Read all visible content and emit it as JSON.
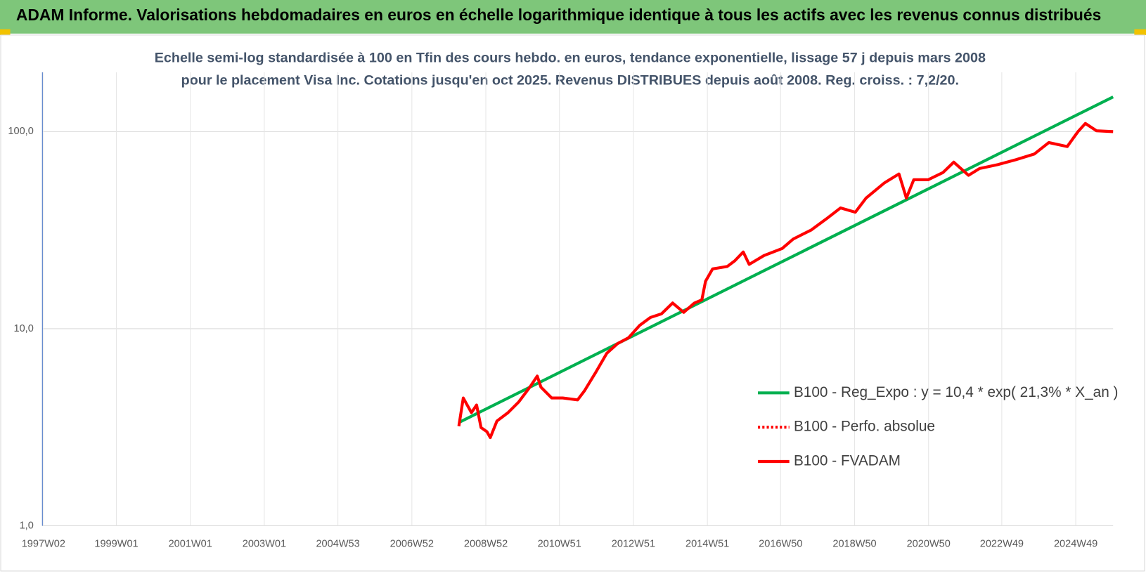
{
  "header": {
    "title": "ADAM Informe. Valorisations hebdomadaires en euros en échelle logarithmique identique à tous les actifs avec les revenus connus distribués"
  },
  "chart_data": {
    "type": "line",
    "title": "Echelle semi-log standardisée à 100 en Tfin des cours hebdo. en euros, tendance exponentielle, lissage 57 j depuis mars 2008 pour le placement Visa Inc. Cotations jusqu'en oct 2025. Revenus DISTRIBUES depuis août 2008. Reg. croiss. : 7,2/20.",
    "log_y": true,
    "grid": true,
    "legend": "right",
    "xlim": [
      1997,
      2025.95
    ],
    "xticks": [
      {
        "value": 1997.03,
        "label": "1997W02"
      },
      {
        "value": 1999.0,
        "label": "1999W01"
      },
      {
        "value": 2001.0,
        "label": "2001W01"
      },
      {
        "value": 2003.0,
        "label": "2003W01"
      },
      {
        "value": 2004.99,
        "label": "2004W53"
      },
      {
        "value": 2006.99,
        "label": "2006W52"
      },
      {
        "value": 2008.99,
        "label": "2008W52"
      },
      {
        "value": 2010.98,
        "label": "2010W51"
      },
      {
        "value": 2012.98,
        "label": "2012W51"
      },
      {
        "value": 2014.98,
        "label": "2014W51"
      },
      {
        "value": 2016.96,
        "label": "2016W50"
      },
      {
        "value": 2018.96,
        "label": "2018W50"
      },
      {
        "value": 2020.96,
        "label": "2020W50"
      },
      {
        "value": 2022.94,
        "label": "2022W49"
      },
      {
        "value": 2024.94,
        "label": "2024W49"
      }
    ],
    "ylim": [
      1,
      200
    ],
    "yticks": [
      {
        "value": 1,
        "label": "1,0"
      },
      {
        "value": 10,
        "label": "10,0"
      },
      {
        "value": 100,
        "label": "100,0"
      }
    ],
    "series": [
      {
        "name": "B100 - Reg_Expo : y = 10,4 * exp( 21,3% *  X_an )",
        "color": "#00b050",
        "line_style": "solid",
        "x": [
          2008.26,
          2025.95
        ],
        "values": [
          3.34,
          150
        ]
      },
      {
        "name": "B100 - Perfo. absolue",
        "color": "#ff0000",
        "line_style": "dotted",
        "x": [],
        "values": []
      },
      {
        "name": "B100 - FVADAM",
        "color": "#ff0000",
        "line_style": "solid",
        "x": [
          2008.26,
          2008.38,
          2008.6,
          2008.74,
          2008.86,
          2009.02,
          2009.11,
          2009.29,
          2009.59,
          2009.88,
          2010.18,
          2010.38,
          2010.48,
          2010.77,
          2011.07,
          2011.47,
          2011.66,
          2011.96,
          2012.26,
          2012.55,
          2012.85,
          2013.15,
          2013.44,
          2013.74,
          2014.04,
          2014.34,
          2014.63,
          2014.83,
          2014.93,
          2015.12,
          2015.52,
          2015.72,
          2015.95,
          2016.11,
          2016.51,
          2017.0,
          2017.3,
          2017.79,
          2018.19,
          2018.58,
          2018.98,
          2019.27,
          2019.77,
          2020.16,
          2020.26,
          2020.36,
          2020.56,
          2020.95,
          2021.35,
          2021.64,
          2022.04,
          2022.34,
          2022.83,
          2023.32,
          2023.82,
          2024.21,
          2024.71,
          2025.0,
          2025.2,
          2025.5,
          2025.95
        ],
        "values": [
          3.2,
          4.45,
          3.75,
          4.1,
          3.15,
          3.0,
          2.8,
          3.4,
          3.75,
          4.25,
          5.05,
          5.75,
          5.05,
          4.45,
          4.45,
          4.35,
          4.85,
          6.0,
          7.5,
          8.4,
          9.0,
          10.4,
          11.4,
          11.9,
          13.5,
          12.1,
          13.5,
          14.0,
          17.4,
          20.1,
          20.7,
          22.1,
          24.5,
          21.2,
          23.5,
          25.5,
          28.5,
          31.7,
          36,
          41,
          39,
          46,
          55,
          61,
          53,
          46,
          57,
          57,
          62,
          70,
          60,
          65,
          68,
          72,
          77,
          88,
          84,
          100,
          110,
          101,
          100
        ]
      }
    ]
  }
}
